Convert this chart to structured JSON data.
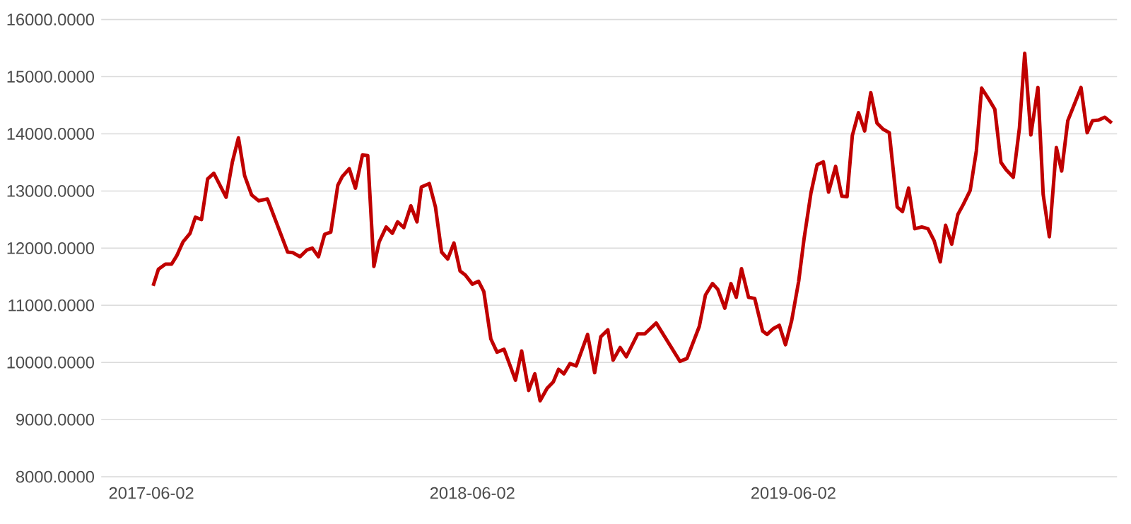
{
  "chart_data": {
    "type": "line",
    "x": [
      "2017-06-04",
      "2017-06-10",
      "2017-06-18",
      "2017-06-25",
      "2017-07-01",
      "2017-07-08",
      "2017-07-16",
      "2017-07-22",
      "2017-07-29",
      "2017-08-05",
      "2017-08-12",
      "2017-08-26",
      "2017-09-02",
      "2017-09-09",
      "2017-09-16",
      "2017-09-24",
      "2017-10-02",
      "2017-10-12",
      "2017-11-04",
      "2017-11-10",
      "2017-11-18",
      "2017-11-26",
      "2017-12-02",
      "2017-12-09",
      "2017-12-16",
      "2017-12-23",
      "2017-12-31",
      "2018-01-05",
      "2018-01-13",
      "2018-01-20",
      "2018-01-28",
      "2018-02-03",
      "2018-02-10",
      "2018-02-16",
      "2018-02-24",
      "2018-03-03",
      "2018-03-09",
      "2018-03-16",
      "2018-03-24",
      "2018-03-31",
      "2018-04-05",
      "2018-04-14",
      "2018-04-21",
      "2018-04-28",
      "2018-05-05",
      "2018-05-12",
      "2018-05-19",
      "2018-05-25",
      "2018-06-02",
      "2018-06-09",
      "2018-06-15",
      "2018-06-23",
      "2018-06-30",
      "2018-07-08",
      "2018-07-21",
      "2018-07-28",
      "2018-08-05",
      "2018-08-12",
      "2018-08-18",
      "2018-08-26",
      "2018-09-02",
      "2018-09-08",
      "2018-09-14",
      "2018-09-21",
      "2018-09-28",
      "2018-10-11",
      "2018-10-19",
      "2018-10-26",
      "2018-11-03",
      "2018-11-09",
      "2018-11-17",
      "2018-11-24",
      "2018-12-07",
      "2018-12-15",
      "2018-12-28",
      "2019-01-24",
      "2019-02-01",
      "2019-02-15",
      "2019-02-22",
      "2019-03-02",
      "2019-03-08",
      "2019-03-16",
      "2019-03-23",
      "2019-03-29",
      "2019-04-04",
      "2019-04-12",
      "2019-04-19",
      "2019-04-28",
      "2019-05-03",
      "2019-05-10",
      "2019-05-17",
      "2019-05-24",
      "2019-05-31",
      "2019-06-08",
      "2019-06-14",
      "2019-06-22",
      "2019-06-29",
      "2019-07-06",
      "2019-07-12",
      "2019-07-20",
      "2019-07-27",
      "2019-08-02",
      "2019-08-08",
      "2019-08-15",
      "2019-08-22",
      "2019-08-29",
      "2019-09-05",
      "2019-09-12",
      "2019-09-19",
      "2019-09-28",
      "2019-10-04",
      "2019-10-11",
      "2019-10-18",
      "2019-10-26",
      "2019-11-02",
      "2019-11-09",
      "2019-11-16",
      "2019-11-22",
      "2019-11-29",
      "2019-12-06",
      "2019-12-12",
      "2019-12-20",
      "2019-12-27",
      "2020-01-02",
      "2020-01-10",
      "2020-01-17",
      "2020-01-24",
      "2020-01-30",
      "2020-02-07",
      "2020-02-14",
      "2020-02-20",
      "2020-02-27",
      "2020-03-06",
      "2020-03-12",
      "2020-03-19",
      "2020-03-27",
      "2020-04-02",
      "2020-04-09",
      "2020-04-24",
      "2020-05-01",
      "2020-05-07",
      "2020-05-14",
      "2020-05-21",
      "2020-05-29"
    ],
    "series": [
      {
        "color": "#c00000",
        "values": [
          11340,
          11630,
          11720,
          11720,
          11870,
          12110,
          12260,
          12540,
          12500,
          13210,
          13310,
          12890,
          13500,
          13930,
          13270,
          12930,
          12830,
          12860,
          11930,
          11920,
          11850,
          11970,
          12000,
          11850,
          12240,
          12280,
          13100,
          13250,
          13390,
          13050,
          13630,
          13620,
          11680,
          12110,
          12370,
          12260,
          12460,
          12360,
          12740,
          12460,
          13070,
          13130,
          12720,
          11930,
          11810,
          12090,
          11600,
          11530,
          11370,
          11420,
          11240,
          10410,
          10180,
          10230,
          9690,
          10200,
          9510,
          9800,
          9330,
          9550,
          9660,
          9880,
          9800,
          9980,
          9940,
          10490,
          9820,
          10450,
          10570,
          10040,
          10260,
          10100,
          10500,
          10500,
          10690,
          10020,
          10070,
          10630,
          11180,
          11380,
          11280,
          10950,
          11380,
          11140,
          11640,
          11140,
          11120,
          10550,
          10490,
          10590,
          10650,
          10310,
          10730,
          11420,
          12150,
          12970,
          13460,
          13510,
          12980,
          13430,
          12910,
          12900,
          13970,
          14370,
          14050,
          14720,
          14190,
          14080,
          14020,
          12720,
          12640,
          13050,
          12340,
          12370,
          12340,
          12130,
          11760,
          12400,
          12070,
          12590,
          12760,
          13010,
          13700,
          14800,
          14610,
          14430,
          13500,
          13370,
          13240,
          14100,
          15410,
          13980,
          14810,
          12940,
          12200,
          13760,
          13350,
          14230,
          14810,
          14020,
          14230,
          14240,
          14290,
          14190
        ]
      }
    ],
    "xlim": [
      "2017-04-06",
      "2020-06-04"
    ],
    "xticks": [
      "2017-06-02",
      "2018-06-02",
      "2019-06-02"
    ],
    "ylim": [
      8000,
      16000
    ],
    "yticks": [
      {
        "value": 8000,
        "label": "8000.0000"
      },
      {
        "value": 9000,
        "label": "9000.0000"
      },
      {
        "value": 10000,
        "label": "10000.0000"
      },
      {
        "value": 11000,
        "label": "11000.0000"
      },
      {
        "value": 12000,
        "label": "12000.0000"
      },
      {
        "value": 13000,
        "label": "13000.0000"
      },
      {
        "value": 14000,
        "label": "14000.0000"
      },
      {
        "value": 15000,
        "label": "15000.0000"
      },
      {
        "value": 16000,
        "label": "16000.0000"
      }
    ],
    "grid": "y",
    "marker": "none",
    "line_style": "solid"
  }
}
